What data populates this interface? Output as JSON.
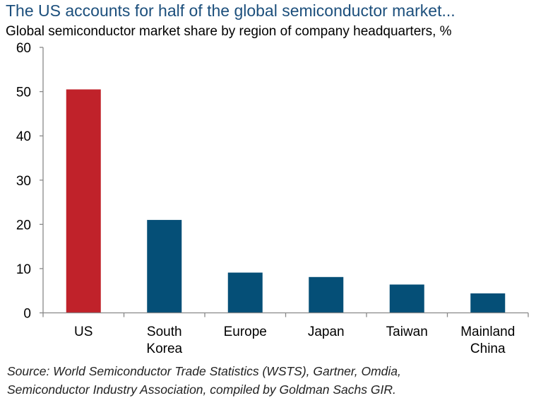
{
  "chart_data": {
    "type": "bar",
    "title": "The US accounts for half of the global semiconductor market...",
    "subtitle": "Global semiconductor market share by region of company headquarters, %",
    "categories": [
      [
        "US"
      ],
      [
        "South",
        "Korea"
      ],
      [
        "Europe"
      ],
      [
        "Japan"
      ],
      [
        "Taiwan"
      ],
      [
        "Mainland",
        "China"
      ]
    ],
    "values": [
      50.5,
      21.0,
      9.1,
      8.1,
      6.4,
      4.4
    ],
    "bar_colors": [
      "#c0222a",
      "#054f77",
      "#054f77",
      "#054f77",
      "#054f77",
      "#054f77"
    ],
    "ylim": [
      0,
      60
    ],
    "yticks": [
      0,
      10,
      20,
      30,
      40,
      50,
      60
    ],
    "xlabel": "",
    "ylabel": "",
    "grid": false,
    "source": [
      "Source: World Semiconductor Trade Statistics (WSTS), Gartner, Omdia,",
      "Semiconductor Industry Association, compiled by Goldman Sachs GIR."
    ]
  }
}
